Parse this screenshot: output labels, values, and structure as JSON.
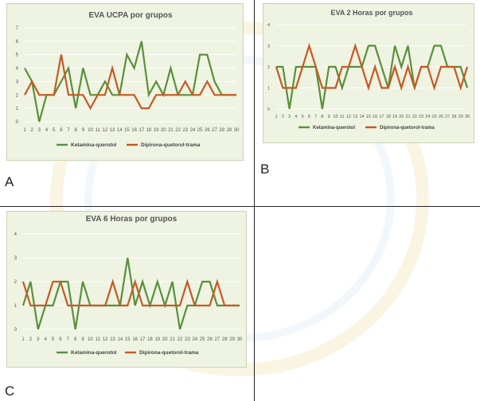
{
  "colors": {
    "ketamina": "#5a8f3a",
    "dipirona": "#c55a23",
    "panel_bg": "#eef3e2",
    "grid": "#ffffff",
    "text": "#555555"
  },
  "panel_labels": [
    "A",
    "B",
    "C"
  ],
  "chart_data": [
    {
      "type": "line",
      "title": "EVA UCPA por grupos",
      "x": [
        1,
        2,
        3,
        4,
        5,
        6,
        7,
        8,
        9,
        10,
        11,
        12,
        13,
        14,
        15,
        16,
        17,
        18,
        19,
        20,
        21,
        22,
        23,
        24,
        25,
        26,
        27,
        28,
        29,
        30
      ],
      "ylim": [
        0,
        7
      ],
      "yticks": [
        0,
        1,
        2,
        3,
        4,
        5,
        6,
        7
      ],
      "grid": true,
      "legend": "bottom",
      "series": [
        {
          "name": "Ketamina-querotol",
          "color": "#5a8f3a",
          "values": [
            4,
            3,
            0,
            2,
            2,
            3,
            4,
            1,
            4,
            2,
            2,
            3,
            2,
            2,
            5,
            4,
            6,
            2,
            3,
            2,
            4,
            2,
            2,
            2,
            5,
            5,
            3,
            2,
            2,
            2
          ]
        },
        {
          "name": "Dipirona-quetorol-trama",
          "color": "#c55a23",
          "values": [
            2,
            3,
            2,
            2,
            2,
            5,
            2,
            2,
            2,
            1,
            2,
            2,
            4,
            2,
            2,
            2,
            1,
            1,
            2,
            2,
            2,
            2,
            3,
            2,
            2,
            3,
            2,
            2,
            2,
            2
          ]
        }
      ]
    },
    {
      "type": "line",
      "title": "EVA 2 Horas por grupos",
      "x": [
        1,
        2,
        3,
        4,
        5,
        6,
        7,
        8,
        9,
        10,
        11,
        12,
        13,
        14,
        15,
        16,
        17,
        18,
        19,
        20,
        21,
        22,
        23,
        24,
        25,
        26,
        27,
        28,
        29,
        30
      ],
      "ylim": [
        0,
        4
      ],
      "yticks": [
        0,
        1,
        2,
        3,
        4
      ],
      "grid": true,
      "legend": "bottom",
      "series": [
        {
          "name": "Ketamina-querotol",
          "color": "#5a8f3a",
          "values": [
            2,
            2,
            0,
            2,
            2,
            2,
            2,
            0,
            2,
            2,
            1,
            2,
            2,
            2,
            3,
            3,
            2,
            1,
            3,
            2,
            3,
            1,
            2,
            2,
            3,
            3,
            2,
            2,
            2,
            1
          ]
        },
        {
          "name": "Dipirona-quetorol-trama",
          "color": "#c55a23",
          "values": [
            2,
            1,
            1,
            1,
            2,
            3,
            2,
            1,
            1,
            1,
            2,
            2,
            3,
            2,
            1,
            2,
            1,
            1,
            2,
            1,
            2,
            1,
            2,
            2,
            1,
            2,
            2,
            2,
            1,
            2
          ]
        }
      ]
    },
    {
      "type": "line",
      "title": "EVA 6 Horas por grupos",
      "x": [
        1,
        2,
        3,
        4,
        5,
        6,
        7,
        8,
        9,
        10,
        11,
        12,
        13,
        14,
        15,
        16,
        17,
        18,
        19,
        20,
        21,
        22,
        23,
        24,
        25,
        26,
        27,
        28,
        29,
        30
      ],
      "ylim": [
        0,
        4
      ],
      "yticks": [
        0,
        1,
        2,
        3,
        4
      ],
      "grid": true,
      "legend": "bottom",
      "series": [
        {
          "name": "Ketamina-querotol",
          "color": "#5a8f3a",
          "values": [
            1,
            2,
            0,
            1,
            1,
            2,
            2,
            0,
            2,
            1,
            1,
            1,
            1,
            1,
            3,
            1,
            2,
            1,
            2,
            1,
            2,
            0,
            1,
            1,
            2,
            2,
            1,
            1,
            1,
            1
          ]
        },
        {
          "name": "Dipirona-quetorol-trama",
          "color": "#c55a23",
          "values": [
            2,
            1,
            1,
            1,
            2,
            2,
            1,
            1,
            1,
            1,
            1,
            1,
            2,
            1,
            1,
            2,
            1,
            1,
            1,
            1,
            1,
            1,
            2,
            1,
            1,
            1,
            2,
            1,
            1,
            1
          ]
        }
      ]
    }
  ]
}
